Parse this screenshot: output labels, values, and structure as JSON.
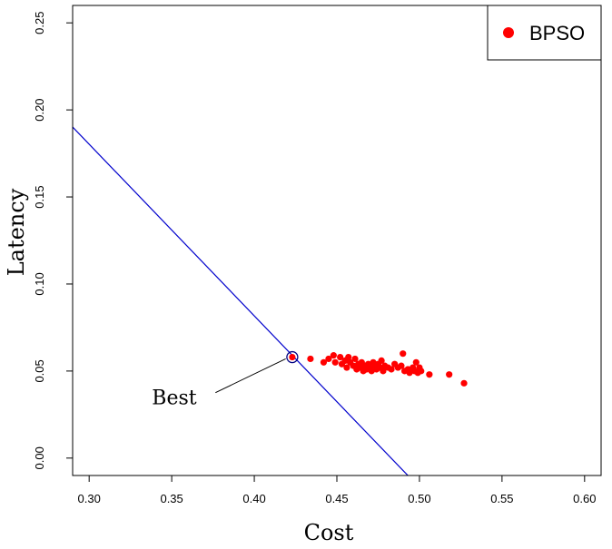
{
  "chart_data": {
    "type": "scatter",
    "xlabel": "Cost",
    "ylabel": "Latency",
    "xlim": [
      0.29,
      0.61
    ],
    "ylim": [
      -0.01,
      0.26
    ],
    "x_ticks": [
      0.3,
      0.35,
      0.4,
      0.45,
      0.5,
      0.55,
      0.6
    ],
    "y_ticks": [
      0.0,
      0.05,
      0.1,
      0.15,
      0.2,
      0.25
    ],
    "x_tick_labels": [
      "0.30",
      "0.35",
      "0.40",
      "0.45",
      "0.50",
      "0.55",
      "0.60"
    ],
    "y_tick_labels": [
      "0.00",
      "0.05",
      "0.10",
      "0.15",
      "0.20",
      "0.25"
    ],
    "grid": false,
    "legend_position": "top-right",
    "series": [
      {
        "name": "BPSO",
        "color": "#ff0000",
        "points": [
          [
            0.423,
            0.058
          ],
          [
            0.434,
            0.057
          ],
          [
            0.442,
            0.055
          ],
          [
            0.445,
            0.057
          ],
          [
            0.448,
            0.059
          ],
          [
            0.449,
            0.055
          ],
          [
            0.452,
            0.058
          ],
          [
            0.453,
            0.054
          ],
          [
            0.455,
            0.056
          ],
          [
            0.456,
            0.052
          ],
          [
            0.457,
            0.058
          ],
          [
            0.458,
            0.055
          ],
          [
            0.46,
            0.053
          ],
          [
            0.461,
            0.057
          ],
          [
            0.462,
            0.051
          ],
          [
            0.463,
            0.054
          ],
          [
            0.464,
            0.052
          ],
          [
            0.465,
            0.055
          ],
          [
            0.466,
            0.05
          ],
          [
            0.467,
            0.053
          ],
          [
            0.468,
            0.051
          ],
          [
            0.469,
            0.054
          ],
          [
            0.47,
            0.052
          ],
          [
            0.471,
            0.05
          ],
          [
            0.472,
            0.055
          ],
          [
            0.473,
            0.053
          ],
          [
            0.474,
            0.051
          ],
          [
            0.475,
            0.054
          ],
          [
            0.476,
            0.052
          ],
          [
            0.477,
            0.056
          ],
          [
            0.478,
            0.05
          ],
          [
            0.479,
            0.053
          ],
          [
            0.481,
            0.052
          ],
          [
            0.483,
            0.051
          ],
          [
            0.485,
            0.054
          ],
          [
            0.487,
            0.052
          ],
          [
            0.489,
            0.053
          ],
          [
            0.49,
            0.06
          ],
          [
            0.491,
            0.05
          ],
          [
            0.493,
            0.051
          ],
          [
            0.494,
            0.049
          ],
          [
            0.496,
            0.052
          ],
          [
            0.497,
            0.05
          ],
          [
            0.498,
            0.055
          ],
          [
            0.499,
            0.049
          ],
          [
            0.5,
            0.052
          ],
          [
            0.501,
            0.05
          ],
          [
            0.506,
            0.048
          ],
          [
            0.518,
            0.048
          ],
          [
            0.527,
            0.043
          ]
        ]
      }
    ],
    "reference_line": {
      "color": "#0000cc",
      "from": [
        0.28,
        0.2
      ],
      "to": [
        0.494,
        -0.011
      ]
    },
    "best": {
      "x": 0.423,
      "y": 0.058,
      "ring_color": "#000080"
    },
    "annotations": [
      {
        "text": "Best",
        "x": 0.338,
        "y": 0.035,
        "arrow_to": [
          0.419,
          0.057
        ]
      }
    ]
  }
}
